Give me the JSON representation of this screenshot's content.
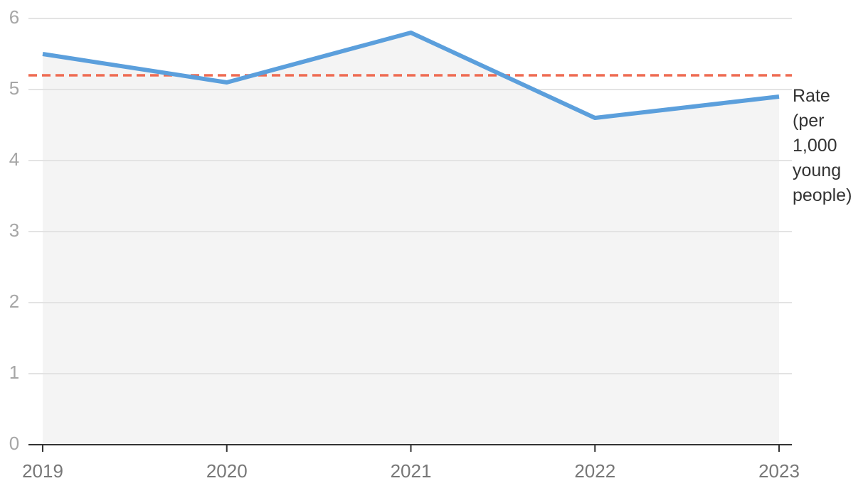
{
  "chart_data": {
    "type": "line",
    "x": [
      2019,
      2020,
      2021,
      2022,
      2023
    ],
    "xlim": [
      2019,
      2023
    ],
    "series": [
      {
        "name": "Rate (per 1,000 young people)",
        "color": "#5b9fdc",
        "values": [
          5.5,
          5.1,
          5.8,
          4.6,
          4.9
        ]
      }
    ],
    "area_color": "#f4f4f4",
    "reference_line": {
      "value": 5.2,
      "color": "#ee6b52"
    },
    "ylim": [
      0,
      6
    ],
    "yticks": [
      0,
      1,
      2,
      3,
      4,
      5,
      6
    ],
    "grid": true
  }
}
